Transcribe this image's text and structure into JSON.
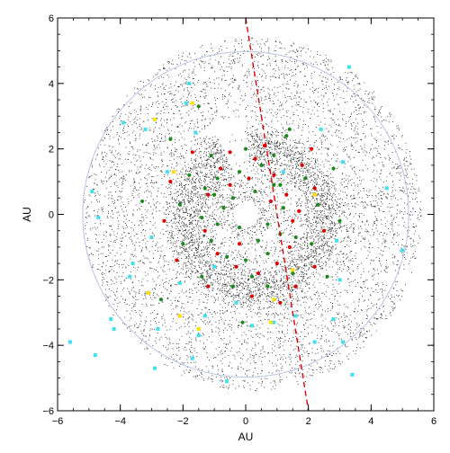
{
  "chart_data": {
    "type": "scatter",
    "title": "",
    "xlabel": "AU",
    "ylabel": "AU",
    "xlim": [
      -6,
      6
    ],
    "ylim": [
      -6,
      6
    ],
    "x_ticks": [
      -6,
      -4,
      -2,
      0,
      2,
      4,
      6
    ],
    "y_ticks": [
      -6,
      -4,
      -2,
      0,
      2,
      4,
      6
    ],
    "grid": false,
    "legend": "none",
    "colors": {
      "particles": "#000000",
      "reference_circle": "#b8c4e8",
      "divider_line": "#e00000",
      "red_points": "#e00000",
      "green_points": "#1a8a1a",
      "cyan_points": "#40e0f0",
      "yellow_points": "#ffe000"
    },
    "reference_circle": {
      "center": [
        0,
        0
      ],
      "radius": 5.2
    },
    "divider_line": {
      "x": [
        0.0,
        2.0
      ],
      "y": [
        6.0,
        -6.0
      ],
      "style": "dashed"
    },
    "series": [
      {
        "marker": "dot",
        "color": "#000000",
        "description_structure": "dense ring with gap",
        "ring_inner_radius": 1.5,
        "ring_outer_radius": 3.0,
        "gap_center_deg": 105,
        "gap_width_deg": 20
      },
      {
        "marker": "circle",
        "color": "#e00000",
        "points": [
          [
            -0.5,
            1.9
          ],
          [
            0.3,
            1.7
          ],
          [
            0.9,
            1.2
          ],
          [
            1.3,
            0.6
          ],
          [
            1.5,
            -0.2
          ],
          [
            1.4,
            -1.0
          ],
          [
            1.0,
            -1.5
          ],
          [
            0.4,
            -1.8
          ],
          [
            -0.3,
            -1.6
          ],
          [
            -0.9,
            -1.2
          ],
          [
            -1.3,
            -0.5
          ],
          [
            -1.2,
            0.6
          ],
          [
            -0.8,
            1.4
          ],
          [
            0.6,
            2.1
          ],
          [
            1.8,
            1.5
          ],
          [
            2.2,
            0.8
          ],
          [
            2.5,
            -0.5
          ],
          [
            2.2,
            -1.6
          ],
          [
            1.6,
            -2.2
          ],
          [
            0.2,
            -2.5
          ],
          [
            -1.2,
            -2.2
          ],
          [
            -2.2,
            -1.4
          ],
          [
            -2.6,
            -0.2
          ],
          [
            -2.4,
            1.0
          ],
          [
            -1.7,
            1.9
          ],
          [
            2.1,
            2.0
          ],
          [
            1.1,
            -2.7
          ],
          [
            -0.5,
            0.9
          ],
          [
            0.8,
            0.4
          ],
          [
            -0.2,
            -0.9
          ],
          [
            0.1,
            1.1
          ],
          [
            1.7,
            0.1
          ]
        ]
      },
      {
        "marker": "circle",
        "color": "#1a8a1a",
        "points": [
          [
            -0.2,
            1.3
          ],
          [
            0.5,
            1.5
          ],
          [
            1.1,
            0.9
          ],
          [
            1.2,
            0.2
          ],
          [
            1.1,
            -0.6
          ],
          [
            0.7,
            -1.2
          ],
          [
            0.0,
            -1.4
          ],
          [
            -0.6,
            -1.3
          ],
          [
            -1.1,
            -0.8
          ],
          [
            -1.4,
            -0.1
          ],
          [
            -1.3,
            0.8
          ],
          [
            -0.9,
            1.1
          ],
          [
            -0.4,
            0.5
          ],
          [
            0.3,
            0.7
          ],
          [
            0.7,
            -0.3
          ],
          [
            -0.2,
            -0.4
          ],
          [
            -0.7,
            0.2
          ],
          [
            0.4,
            -0.8
          ],
          [
            1.9,
            1.1
          ],
          [
            2.3,
            0.3
          ],
          [
            2.1,
            -0.9
          ],
          [
            1.5,
            -1.8
          ],
          [
            0.7,
            -2.2
          ],
          [
            -0.4,
            -2.2
          ],
          [
            -1.4,
            -1.9
          ],
          [
            -2.0,
            -0.9
          ],
          [
            -2.1,
            0.3
          ],
          [
            -1.8,
            1.2
          ],
          [
            -1.1,
            1.8
          ],
          [
            0.0,
            2.0
          ],
          [
            0.9,
            1.8
          ],
          [
            2.8,
            1.4
          ],
          [
            3.0,
            -0.2
          ],
          [
            2.6,
            -1.9
          ],
          [
            -0.1,
            -3.3
          ],
          [
            -2.7,
            -2.6
          ],
          [
            -3.3,
            0.4
          ],
          [
            -2.4,
            2.3
          ],
          [
            -1.5,
            3.3
          ],
          [
            1.3,
            2.4
          ],
          [
            1.4,
            2.6
          ],
          [
            -0.9,
            -0.3
          ],
          [
            0.9,
            0.9
          ],
          [
            -1.0,
            0.6
          ],
          [
            0.2,
            -1.9
          ],
          [
            1.6,
            -0.7
          ]
        ]
      },
      {
        "marker": "square",
        "color": "#40e0f0",
        "points": [
          [
            -1.8,
            4.0
          ],
          [
            -1.9,
            3.4
          ],
          [
            -3.9,
            2.8
          ],
          [
            -3.2,
            2.6
          ],
          [
            -4.7,
            -0.1
          ],
          [
            -4.9,
            0.7
          ],
          [
            -3.6,
            -1.5
          ],
          [
            -3.7,
            -1.9
          ],
          [
            -3.0,
            -0.7
          ],
          [
            -2.1,
            -2.1
          ],
          [
            -4.3,
            -3.2
          ],
          [
            -4.2,
            -3.5
          ],
          [
            -5.6,
            -3.9
          ],
          [
            -4.8,
            -4.3
          ],
          [
            -2.9,
            -4.7
          ],
          [
            -1.7,
            -4.4
          ],
          [
            -1.5,
            -3.7
          ],
          [
            -0.6,
            -5.1
          ],
          [
            0.2,
            -3.4
          ],
          [
            0.9,
            -3.3
          ],
          [
            1.6,
            -3.1
          ],
          [
            2.2,
            -3.9
          ],
          [
            2.8,
            -3.2
          ],
          [
            3.0,
            -2.0
          ],
          [
            3.4,
            -4.9
          ],
          [
            3.1,
            -3.9
          ],
          [
            4.5,
            0.8
          ],
          [
            5.0,
            -1.1
          ],
          [
            3.3,
            4.5
          ],
          [
            3.1,
            1.6
          ],
          [
            2.4,
            2.6
          ],
          [
            -1.0,
            -1.6
          ],
          [
            -0.3,
            -2.7
          ],
          [
            -1.6,
            2.5
          ],
          [
            -1.3,
            -3.1
          ],
          [
            -2.8,
            -3.5
          ],
          [
            1.2,
            1.3
          ],
          [
            2.9,
            -0.8
          ],
          [
            -2.5,
            1.3
          ]
        ]
      },
      {
        "marker": "square",
        "color": "#ffe000",
        "points": [
          [
            -2.9,
            2.9
          ],
          [
            -1.7,
            3.4
          ],
          [
            -3.1,
            -2.4
          ],
          [
            -2.3,
            1.3
          ],
          [
            -2.1,
            -3.1
          ],
          [
            0.8,
            -3.3
          ],
          [
            1.5,
            -1.7
          ],
          [
            0.9,
            -2.6
          ],
          [
            -1.5,
            -3.5
          ],
          [
            2.2,
            0.6
          ]
        ]
      }
    ]
  }
}
